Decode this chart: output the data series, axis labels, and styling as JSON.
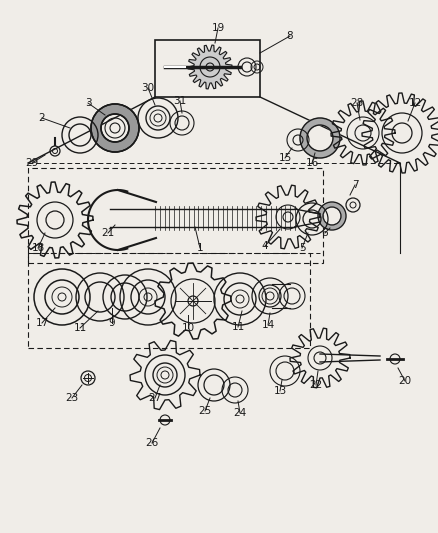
{
  "bg_color": "#f0ede8",
  "line_color": "#1a1a1a",
  "text_color": "#1a1a1a",
  "fig_width": 4.38,
  "fig_height": 5.33,
  "dpi": 100
}
